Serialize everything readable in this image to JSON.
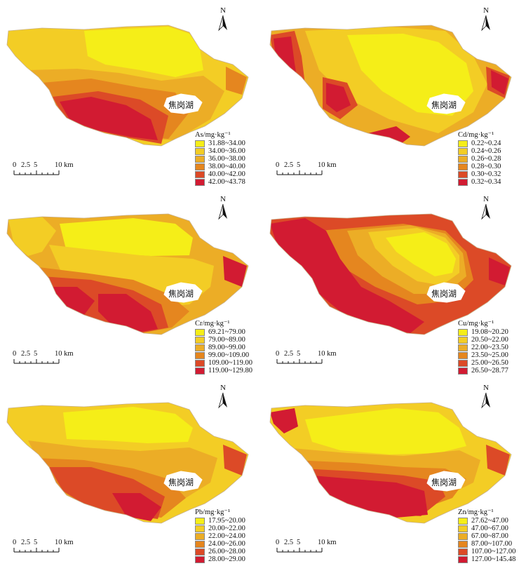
{
  "panels": [
    {
      "id": "as",
      "lake_label": "焦岗湖",
      "legend_title": "As/mg·kg⁻¹",
      "classes": [
        "31.88~34.00",
        "34.00~36.00",
        "36.00~38.00",
        "38.00~40.00",
        "40.00~42.00",
        "42.00~43.78"
      ]
    },
    {
      "id": "cd",
      "lake_label": "焦岗湖",
      "legend_title": "Cd/mg·kg⁻¹",
      "classes": [
        "0.22~0.24",
        "0.24~0.26",
        "0.26~0.28",
        "0.28~0.30",
        "0.30~0.32",
        "0.32~0.34"
      ]
    },
    {
      "id": "cr",
      "lake_label": "焦岗湖",
      "legend_title": "Cr/mg·kg⁻¹",
      "classes": [
        "69.21~79.00",
        "79.00~89.00",
        "89.00~99.00",
        "99.00~109.00",
        "109.00~119.00",
        "119.00~129.80"
      ]
    },
    {
      "id": "cu",
      "lake_label": "焦岗湖",
      "legend_title": "Cu/mg·kg⁻¹",
      "classes": [
        "19.08~20.20",
        "20.50~22.00",
        "22.00~23.50",
        "23.50~25.00",
        "25.00~26.50",
        "26.50~28.77"
      ]
    },
    {
      "id": "pb",
      "lake_label": "焦岗湖",
      "legend_title": "Pb/mg·kg⁻¹",
      "classes": [
        "17.95~20.00",
        "20.00~22.00",
        "22.00~24.00",
        "24.00~26.00",
        "26.00~28.00",
        "28.00~29.00"
      ]
    },
    {
      "id": "zn",
      "lake_label": "焦岗湖",
      "legend_title": "Zn/mg·kg⁻¹",
      "classes": [
        "27.62~47.00",
        "47.00~67.00",
        "67.00~87.00",
        "87.00~107.00",
        "107.00~127.00",
        "127.00~145.48"
      ]
    }
  ],
  "north_label": "N",
  "scale_labels": [
    "0",
    "2.5",
    "5",
    "10 km"
  ],
  "colors": [
    "#f5ee18",
    "#f3cd25",
    "#ecad26",
    "#e5861f",
    "#dc4a27",
    "#d21b32"
  ]
}
